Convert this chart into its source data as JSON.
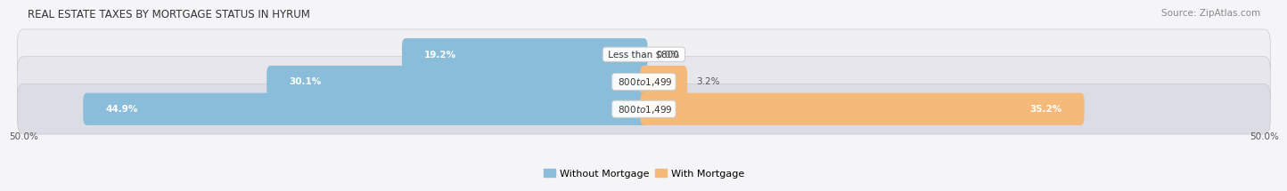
{
  "title": "REAL ESTATE TAXES BY MORTGAGE STATUS IN HYRUM",
  "source": "Source: ZipAtlas.com",
  "rows": [
    {
      "label": "Less than $800",
      "without_mortgage": 19.2,
      "with_mortgage": 0.0
    },
    {
      "label": "$800 to $1,499",
      "without_mortgage": 30.1,
      "with_mortgage": 3.2
    },
    {
      "label": "$800 to $1,499",
      "without_mortgage": 44.9,
      "with_mortgage": 35.2
    }
  ],
  "xlim": [
    -50.0,
    50.0
  ],
  "xticklabels_left": "50.0%",
  "xticklabels_right": "50.0%",
  "color_without": "#89bdd9",
  "color_with": "#f5b97a",
  "color_without_dark": "#5a9ec2",
  "color_with_dark": "#e8954a",
  "bar_height": 0.58,
  "row_bg_light": "#f0f0f3",
  "row_bg_mid": "#e6e6ec",
  "row_bg_dark": "#dcdce4",
  "row_sep_color": "#c8c8d0",
  "title_fontsize": 8.5,
  "source_fontsize": 7.5,
  "label_fontsize": 7.5,
  "pct_fontsize": 7.5,
  "legend_fontsize": 8,
  "bg_color": "#f5f5f8",
  "text_dark": "#ffffff",
  "text_outside": "#555555"
}
